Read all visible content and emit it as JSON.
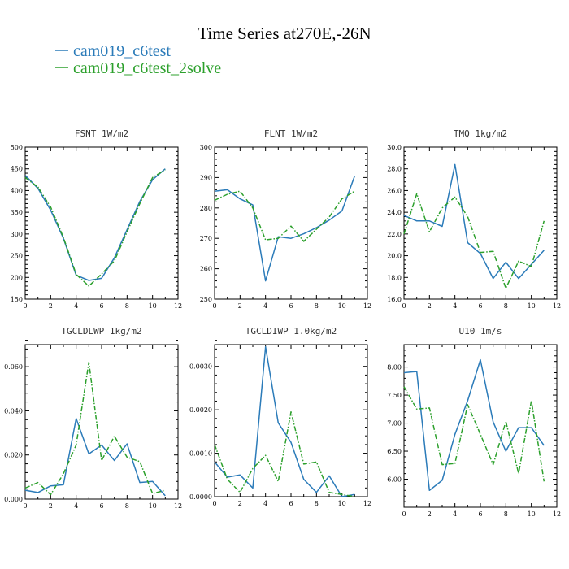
{
  "figure": {
    "title": "Time Series at270E,-26N",
    "colors": {
      "blue": "#2b7bb9",
      "green": "#2ca02c"
    },
    "legend": [
      {
        "label": "cam019_c6test",
        "color": "#2b7bb9",
        "dash": "solid"
      },
      {
        "label": "cam019_c6test_2solve",
        "color": "#2ca02c",
        "dash": "dashdot"
      }
    ]
  },
  "chart_data": [
    {
      "type": "line",
      "title": "FSNT  1W/m2",
      "xlim": [
        0,
        12
      ],
      "ylim": [
        150,
        500
      ],
      "xticks": [
        0,
        2,
        4,
        6,
        8,
        10,
        12
      ],
      "yticks": [
        150,
        200,
        250,
        300,
        350,
        400,
        450,
        500
      ],
      "ytick_labels": [
        "150",
        "200",
        "250",
        "300",
        "350",
        "400",
        "450",
        "500"
      ],
      "x": [
        0,
        1,
        2,
        3,
        4,
        5,
        6,
        7,
        8,
        9,
        10,
        11
      ],
      "series": [
        {
          "name": "cam019_c6test",
          "values": [
            435,
            405,
            355,
            290,
            205,
            193,
            198,
            245,
            310,
            375,
            425,
            450
          ]
        },
        {
          "name": "cam019_c6test_2solve",
          "values": [
            430,
            408,
            362,
            292,
            207,
            180,
            208,
            238,
            305,
            370,
            430,
            448
          ]
        }
      ]
    },
    {
      "type": "line",
      "title": "FLNT  1W/m2",
      "xlim": [
        0,
        12
      ],
      "ylim": [
        250,
        300
      ],
      "xticks": [
        0,
        2,
        4,
        6,
        8,
        10,
        12
      ],
      "yticks": [
        250,
        260,
        270,
        280,
        290,
        300
      ],
      "ytick_labels": [
        "250",
        "260",
        "270",
        "280",
        "290",
        "300"
      ],
      "x": [
        0,
        1,
        2,
        3,
        4,
        5,
        6,
        7,
        8,
        9,
        10,
        11
      ],
      "series": [
        {
          "name": "cam019_c6test",
          "values": [
            285.5,
            286,
            283,
            281,
            256,
            270.5,
            270,
            271.5,
            273.5,
            276,
            279,
            290.5
          ]
        },
        {
          "name": "cam019_c6test_2solve",
          "values": [
            282.5,
            284.5,
            285.5,
            280,
            269.5,
            270,
            274,
            269,
            273,
            277,
            283,
            285.5
          ]
        }
      ]
    },
    {
      "type": "line",
      "title": "TMQ  1kg/m2",
      "xlim": [
        0,
        12
      ],
      "ylim": [
        16,
        30
      ],
      "xticks": [
        0,
        2,
        4,
        6,
        8,
        10,
        12
      ],
      "yticks": [
        16,
        18,
        20,
        22,
        24,
        26,
        28,
        30
      ],
      "ytick_labels": [
        "16.0",
        "18.0",
        "20.0",
        "22.0",
        "24.0",
        "26.0",
        "28.0",
        "30.0"
      ],
      "x": [
        0,
        1,
        2,
        3,
        4,
        5,
        6,
        7,
        8,
        9,
        10,
        11
      ],
      "series": [
        {
          "name": "cam019_c6test",
          "values": [
            23.7,
            23.2,
            23.2,
            22.7,
            28.4,
            21.2,
            20.2,
            17.9,
            19.4,
            17.9,
            19.2,
            20.5
          ]
        },
        {
          "name": "cam019_c6test_2solve",
          "values": [
            22.0,
            25.7,
            22.2,
            24.4,
            25.4,
            23.6,
            20.3,
            20.4,
            17.0,
            19.5,
            19.0,
            23.2
          ]
        }
      ]
    },
    {
      "type": "line",
      "title": "TGCLDLWP  1kg/m2",
      "xlim": [
        0,
        12
      ],
      "ylim": [
        0,
        0.07
      ],
      "xticks": [
        0,
        2,
        4,
        6,
        8,
        10,
        12
      ],
      "yticks": [
        0,
        0.02,
        0.04,
        0.06
      ],
      "ytick_labels": [
        "0.000",
        "0.020",
        "0.040",
        "0.060"
      ],
      "x": [
        0,
        1,
        2,
        3,
        4,
        5,
        6,
        7,
        8,
        9,
        10,
        11
      ],
      "series": [
        {
          "name": "cam019_c6test",
          "values": [
            0.004,
            0.003,
            0.006,
            0.0065,
            0.0365,
            0.0205,
            0.0245,
            0.0175,
            0.025,
            0.0075,
            0.008,
            0.0015
          ]
        },
        {
          "name": "cam019_c6test_2solve",
          "values": [
            0.005,
            0.0075,
            0.002,
            0.0115,
            0.0245,
            0.062,
            0.0175,
            0.0285,
            0.019,
            0.017,
            0.0025,
            0.004
          ]
        }
      ]
    },
    {
      "type": "line",
      "title": "TGCLDIWP  1.0kg/m2",
      "xlim": [
        0,
        12
      ],
      "ylim": [
        0,
        0.0035
      ],
      "xticks": [
        0,
        2,
        4,
        6,
        8,
        10,
        12
      ],
      "yticks": [
        0,
        0.001,
        0.002,
        0.003
      ],
      "ytick_labels": [
        "0.0000",
        "0.0010",
        "0.0020",
        "0.0030"
      ],
      "x": [
        0,
        1,
        2,
        3,
        4,
        5,
        6,
        7,
        8,
        9,
        10,
        11
      ],
      "series": [
        {
          "name": "cam019_c6test",
          "values": [
            0.0008,
            0.00045,
            0.0005,
            0.0002,
            0.00345,
            0.0017,
            0.00125,
            0.0004,
            0.0001,
            0.00048,
            0.0,
            5e-05
          ]
        },
        {
          "name": "cam019_c6test_2solve",
          "values": [
            0.0012,
            0.0004,
            0.0001,
            0.00065,
            0.00095,
            0.00035,
            0.00195,
            0.00075,
            0.0008,
            0.0001,
            5e-05,
            0.0
          ]
        }
      ]
    },
    {
      "type": "line",
      "title": "U10  1m/s",
      "xlim": [
        0,
        12
      ],
      "ylim": [
        5.5,
        8.4
      ],
      "xticks": [
        0,
        2,
        4,
        6,
        8,
        10,
        12
      ],
      "yticks": [
        6.0,
        6.5,
        7.0,
        7.5,
        8.0
      ],
      "ytick_labels": [
        "6.00",
        "6.50",
        "7.00",
        "7.50",
        "8.00"
      ],
      "x": [
        0,
        1,
        2,
        3,
        4,
        5,
        6,
        7,
        8,
        9,
        10,
        11
      ],
      "series": [
        {
          "name": "cam019_c6test",
          "values": [
            7.9,
            7.92,
            5.8,
            5.98,
            6.8,
            7.4,
            8.13,
            7.02,
            6.5,
            6.92,
            6.92,
            6.6
          ]
        },
        {
          "name": "cam019_c6test_2solve",
          "values": [
            7.65,
            7.25,
            7.27,
            6.26,
            6.28,
            7.33,
            6.8,
            6.26,
            7.03,
            6.1,
            7.4,
            5.96
          ]
        }
      ]
    }
  ]
}
